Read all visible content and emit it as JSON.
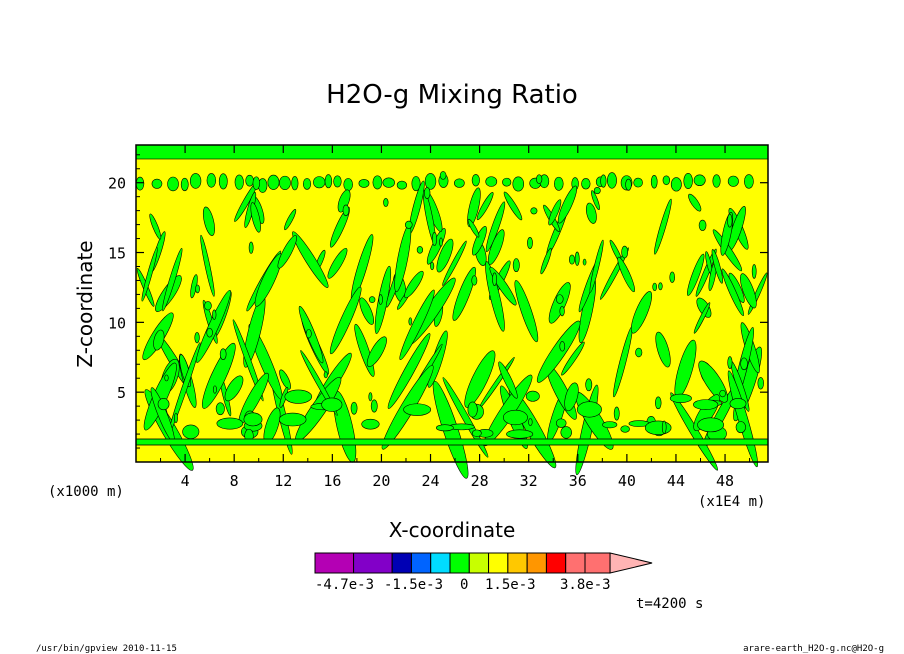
{
  "chart_data": {
    "type": "heatmap",
    "title": "H2O-g Mixing Ratio",
    "xlabel": "X-coordinate",
    "ylabel": "Z-coordinate",
    "xunit": "(x1E4 m)",
    "yunit": "(x1000 m)",
    "xlim": [
      0,
      51.5
    ],
    "ylim": [
      0,
      22.7
    ],
    "xticks": [
      "4",
      "8",
      "12",
      "16",
      "20",
      "24",
      "28",
      "32",
      "36",
      "40",
      "44",
      "48"
    ],
    "yticks": [
      "5",
      "10",
      "15",
      "20"
    ],
    "colorbar": {
      "colors": [
        "#b400b4",
        "#8200c8",
        "#0000b4",
        "#0064ff",
        "#00dcff",
        "#00ff00",
        "#c8ff00",
        "#ffff00",
        "#ffc800",
        "#ff9600",
        "#ff0000",
        "#ff7070",
        "#ffb4b4"
      ],
      "labels": [
        "-4.7e-3",
        "-1.5e-3",
        "0",
        "1.5e-3",
        "3.8e-3"
      ]
    },
    "annotation": "t=4200 s",
    "background_color": "#ffff00",
    "feature_color": "#00ff00"
  },
  "footer": {
    "left": "/usr/bin/gpview   2010-11-15",
    "right": "arare-earth_H2O-g.nc@H2O-g"
  }
}
